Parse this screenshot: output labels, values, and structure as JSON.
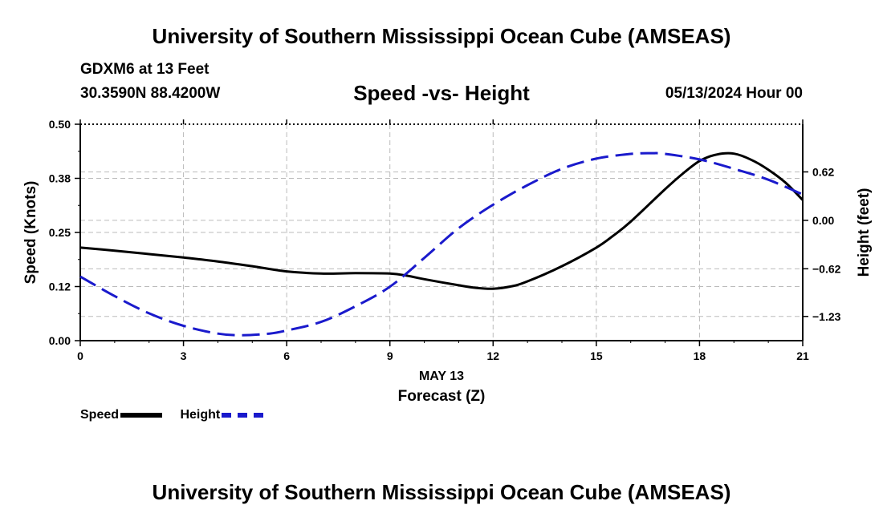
{
  "header": {
    "title": "University of Southern Mississippi Ocean Cube (AMSEAS)",
    "station_name": "GDXM6 at 13 Feet",
    "station_coords": "30.3590N  88.4200W",
    "chart_title": "Speed -vs- Height",
    "date_label": "05/13/2024 Hour 00"
  },
  "footer": {
    "title": "University of Southern Mississippi Ocean Cube (AMSEAS)"
  },
  "legend": {
    "speed_label": "Speed",
    "height_label": "Height"
  },
  "colors": {
    "speed": "#000000",
    "height": "#1a1acc",
    "grid": "#bbbbbb"
  },
  "chart_data": {
    "type": "line",
    "title": "Speed -vs- Height",
    "xlabel": "Forecast (Z)",
    "xlabel_date": "MAY 13",
    "ylabel": "Speed (Knots)",
    "y2label": "Height (feet)",
    "xlim": [
      0,
      21
    ],
    "ylim": [
      0,
      0.5
    ],
    "y2lim": [
      -1.54,
      1.23
    ],
    "x_ticks": [
      0,
      3,
      6,
      9,
      12,
      15,
      18,
      21
    ],
    "x_tick_labels": [
      "0",
      "3",
      "6",
      "9",
      "12",
      "15",
      "18",
      "21"
    ],
    "y_ticks": [
      0,
      0.125,
      0.25,
      0.375,
      0.5
    ],
    "y_tick_labels": [
      "0.00",
      "0.12",
      "0.25",
      "0.38",
      "0.50"
    ],
    "y2_ticks": [
      -1.23,
      -0.62,
      0,
      0.62
    ],
    "y2_tick_labels": [
      "−1.23",
      "−0.62",
      "0.00",
      "0.62"
    ],
    "grid": true,
    "series": [
      {
        "name": "Speed",
        "axis": "left",
        "style": "solid",
        "x": [
          0,
          1,
          2,
          3,
          4,
          5,
          6,
          7,
          8,
          9,
          9.5,
          10,
          11,
          11.5,
          12,
          12.5,
          13,
          14,
          15,
          15.5,
          16,
          17,
          17.5,
          18,
          18.5,
          19,
          19.5,
          20,
          20.5,
          21
        ],
        "values": [
          0.215,
          0.208,
          0.2,
          0.192,
          0.183,
          0.172,
          0.16,
          0.155,
          0.156,
          0.155,
          0.15,
          0.142,
          0.128,
          0.122,
          0.12,
          0.125,
          0.137,
          0.172,
          0.215,
          0.243,
          0.275,
          0.35,
          0.385,
          0.415,
          0.43,
          0.432,
          0.418,
          0.395,
          0.365,
          0.325
        ]
      },
      {
        "name": "Height",
        "axis": "right",
        "style": "dashed",
        "x": [
          0,
          1,
          2,
          3,
          4,
          4.7,
          5.5,
          6,
          7,
          8,
          9,
          10,
          11,
          12,
          13,
          14,
          15,
          16,
          16.6,
          17,
          18,
          19,
          20,
          21
        ],
        "values": [
          -0.72,
          -0.97,
          -1.19,
          -1.35,
          -1.45,
          -1.47,
          -1.45,
          -1.41,
          -1.3,
          -1.1,
          -0.85,
          -0.48,
          -0.1,
          0.2,
          0.45,
          0.66,
          0.79,
          0.85,
          0.86,
          0.85,
          0.78,
          0.66,
          0.52,
          0.33
        ]
      }
    ]
  }
}
